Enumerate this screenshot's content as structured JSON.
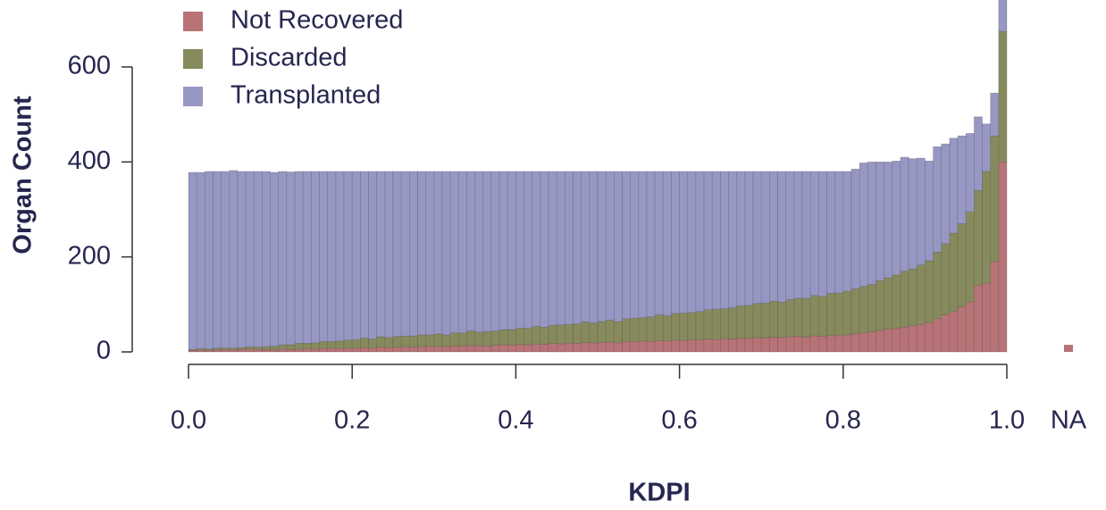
{
  "chart_data": {
    "type": "stacked_histogram",
    "xlabel": "KDPI",
    "ylabel": "Organ Count",
    "bins": [
      0,
      0.01,
      0.02,
      0.03,
      0.04,
      0.05,
      0.06,
      0.07,
      0.08,
      0.09,
      0.1,
      0.11,
      0.12,
      0.13,
      0.14,
      0.15,
      0.16,
      0.17,
      0.18,
      0.19,
      0.2,
      0.21,
      0.22,
      0.23,
      0.24,
      0.25,
      0.26,
      0.27,
      0.28,
      0.29,
      0.3,
      0.31,
      0.32,
      0.33,
      0.34,
      0.35,
      0.36,
      0.37,
      0.38,
      0.39,
      0.4,
      0.41,
      0.42,
      0.43,
      0.44,
      0.45,
      0.46,
      0.47,
      0.48,
      0.49,
      0.5,
      0.51,
      0.52,
      0.53,
      0.54,
      0.55,
      0.56,
      0.57,
      0.58,
      0.59,
      0.6,
      0.61,
      0.62,
      0.63,
      0.64,
      0.65,
      0.66,
      0.67,
      0.68,
      0.69,
      0.7,
      0.71,
      0.72,
      0.73,
      0.74,
      0.75,
      0.76,
      0.77,
      0.78,
      0.79,
      0.8,
      0.81,
      0.82,
      0.83,
      0.84,
      0.85,
      0.86,
      0.87,
      0.88,
      0.89,
      0.9,
      0.91,
      0.92,
      0.93,
      0.94,
      0.95,
      0.96,
      0.97,
      0.98,
      0.99,
      1
    ],
    "series": [
      {
        "name": "Not Recovered",
        "color": "#b87377",
        "values": [
          3,
          4,
          3,
          4,
          5,
          4,
          5,
          6,
          5,
          5,
          4,
          6,
          5,
          6,
          7,
          6,
          7,
          8,
          7,
          8,
          8,
          9,
          8,
          10,
          9,
          10,
          11,
          10,
          11,
          12,
          12,
          11,
          13,
          12,
          14,
          13,
          12,
          14,
          15,
          14,
          16,
          15,
          17,
          16,
          18,
          17,
          19,
          18,
          20,
          19,
          20,
          21,
          19,
          22,
          21,
          23,
          22,
          24,
          23,
          25,
          24,
          26,
          25,
          27,
          26,
          28,
          27,
          29,
          28,
          30,
          29,
          31,
          30,
          32,
          33,
          31,
          34,
          33,
          35,
          34,
          36,
          38,
          40,
          42,
          45,
          48,
          50,
          52,
          55,
          58,
          62,
          70,
          78,
          85,
          95,
          105,
          140,
          145,
          190,
          400
        ],
        "na_value": 15
      },
      {
        "name": "Discarded",
        "color": "#878a5c",
        "values": [
          2,
          3,
          3,
          4,
          3,
          4,
          4,
          5,
          5,
          6,
          8,
          9,
          10,
          12,
          11,
          13,
          15,
          14,
          16,
          17,
          18,
          20,
          19,
          22,
          21,
          23,
          22,
          24,
          25,
          24,
          26,
          25,
          27,
          28,
          30,
          29,
          31,
          30,
          32,
          33,
          34,
          35,
          37,
          36,
          38,
          40,
          39,
          41,
          43,
          42,
          44,
          46,
          45,
          48,
          50,
          49,
          52,
          54,
          53,
          56,
          58,
          57,
          60,
          62,
          64,
          63,
          66,
          68,
          70,
          72,
          74,
          76,
          75,
          78,
          80,
          82,
          85,
          84,
          88,
          90,
          92,
          95,
          98,
          100,
          105,
          108,
          112,
          118,
          120,
          125,
          130,
          140,
          150,
          165,
          175,
          190,
          200,
          235,
          265,
          275
        ],
        "na_value": 0
      },
      {
        "name": "Transplanted",
        "color": "#9797c4",
        "values": [
          373,
          371,
          374,
          372,
          372,
          374,
          371,
          369,
          370,
          369,
          366,
          365,
          364,
          362,
          362,
          361,
          358,
          358,
          357,
          355,
          354,
          351,
          353,
          348,
          350,
          347,
          347,
          346,
          344,
          344,
          342,
          344,
          340,
          340,
          336,
          338,
          337,
          336,
          333,
          333,
          330,
          330,
          326,
          328,
          324,
          323,
          322,
          321,
          317,
          319,
          316,
          313,
          316,
          310,
          309,
          308,
          306,
          302,
          304,
          299,
          298,
          297,
          295,
          291,
          290,
          289,
          287,
          283,
          282,
          278,
          277,
          273,
          275,
          270,
          267,
          267,
          261,
          263,
          257,
          256,
          252,
          252,
          260,
          258,
          250,
          244,
          240,
          240,
          232,
          225,
          210,
          222,
          210,
          200,
          185,
          165,
          155,
          100,
          90,
          90
        ],
        "na_value": 0
      }
    ],
    "na_label": "NA",
    "xlim": [
      0,
      1
    ],
    "xticks": [
      {
        "value": 0,
        "label": "0.0"
      },
      0.2,
      0.4,
      0.6,
      0.8,
      {
        "value": 1,
        "label": "1.0"
      }
    ],
    "ylim": [
      0,
      741
    ],
    "yticks": [
      0,
      200,
      400,
      600
    ],
    "legend": "top-left"
  }
}
